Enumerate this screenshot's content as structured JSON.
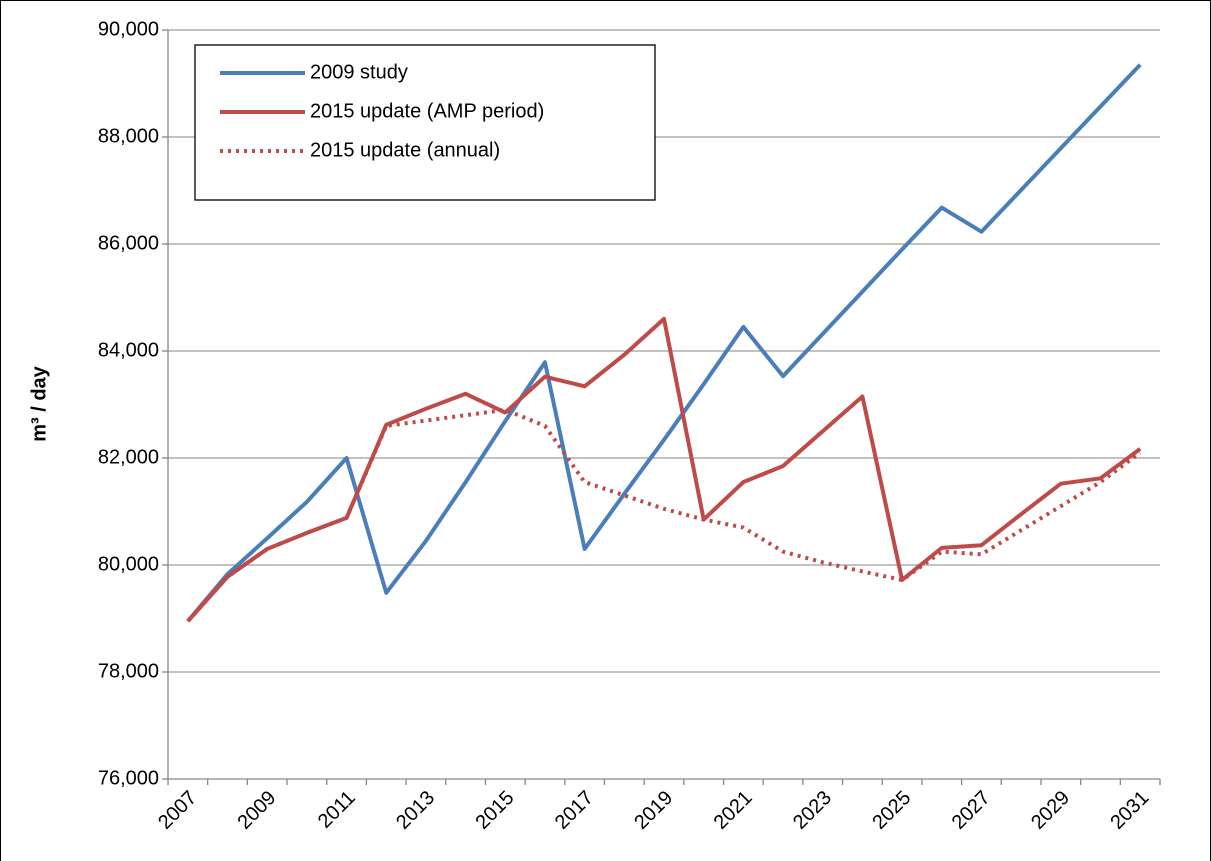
{
  "chart_data": {
    "type": "line",
    "y_label": "m³ / day",
    "categories": [
      "2007",
      null,
      "2009",
      null,
      "2011",
      null,
      "2013",
      null,
      "2015",
      null,
      "2017",
      null,
      "2019",
      null,
      "2021",
      null,
      "2023",
      null,
      "2025",
      null,
      "2027",
      null,
      "2029",
      null,
      "2031"
    ],
    "ylim": [
      76000,
      90000
    ],
    "yticks": [
      {
        "value": 76000,
        "label": "76,000"
      },
      {
        "value": 78000,
        "label": "78,000"
      },
      {
        "value": 80000,
        "label": "80,000"
      },
      {
        "value": 82000,
        "label": "82,000"
      },
      {
        "value": 84000,
        "label": "84,000"
      },
      {
        "value": 86000,
        "label": "86,000"
      },
      {
        "value": 88000,
        "label": "88,000"
      },
      {
        "value": 90000,
        "label": "90,000"
      }
    ],
    "grid": true,
    "legend": "top-left",
    "series": [
      {
        "name": "2009 study",
        "color": "#4a7ebb",
        "dash": "solid",
        "values": [
          78950,
          79830,
          80500,
          81180,
          82000,
          79480,
          80450,
          81550,
          82690,
          83790,
          80300,
          81330,
          82340,
          83380,
          84450,
          83530,
          84320,
          85110,
          85900,
          86680,
          86230,
          87010,
          87790,
          88570,
          89350
        ]
      },
      {
        "name": "2015 update (AMP period)",
        "color": "#be4b48",
        "dash": "solid",
        "values": [
          78950,
          79780,
          80300,
          80600,
          80880,
          82620,
          82920,
          83200,
          82850,
          83520,
          83340,
          83930,
          84600,
          80850,
          81550,
          81850,
          82500,
          83150,
          79720,
          80320,
          80370,
          80950,
          81520,
          81620,
          82170
        ]
      },
      {
        "name": "2015 update (annual)",
        "color": "#be4b48",
        "dash": "dotted",
        "values": [
          78950,
          79780,
          80300,
          80600,
          80880,
          82600,
          82700,
          82800,
          82900,
          82600,
          81550,
          81300,
          81050,
          80850,
          80700,
          80250,
          80050,
          79880,
          79720,
          80250,
          80200,
          80650,
          81100,
          81550,
          82100
        ]
      }
    ]
  }
}
